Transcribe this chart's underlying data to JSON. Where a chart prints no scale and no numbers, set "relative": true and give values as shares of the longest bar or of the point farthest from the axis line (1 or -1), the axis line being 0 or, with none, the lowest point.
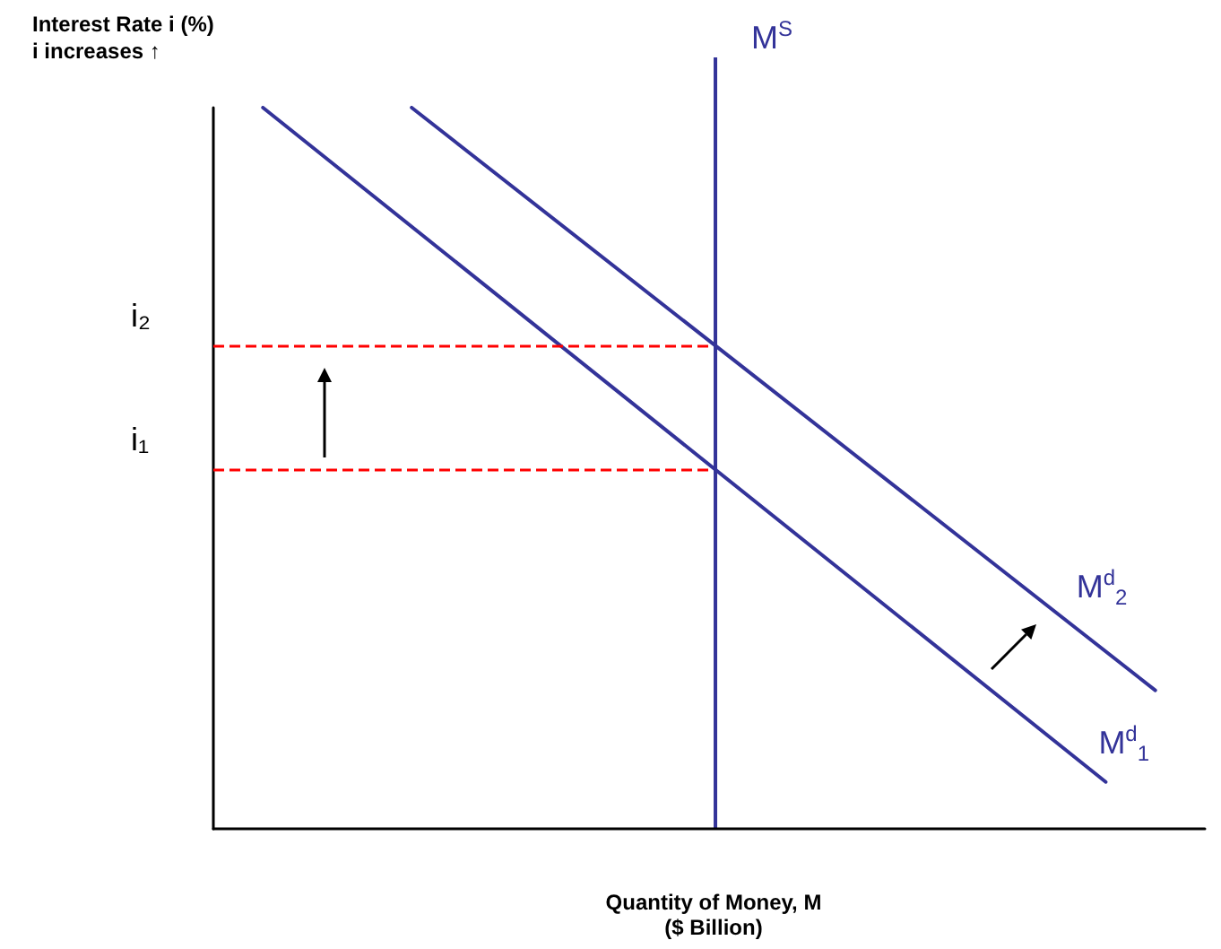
{
  "chart_data": {
    "type": "line",
    "relative": true,
    "xlabel": "Quantity of Money, M\n($ Billion)",
    "ylabel": "Interest Rate i (%)\ni increases ↑",
    "annotations": [
      "M$^{S}$"
    ],
    "legend": false,
    "grid": false,
    "marker": "none",
    "line_style": "solid",
    "categories": [
      null,
      null,
      null,
      null,
      null,
      null,
      null,
      null,
      null,
      null,
      null,
      null,
      null,
      null,
      null,
      null,
      null,
      null,
      null,
      null,
      null
    ],
    "series": [
      {
        "name": "M$^{d}$$_{1}$",
        "color": "#333399",
        "values": [
          null,
          1,
          null,
          null,
          null,
          null,
          null,
          null,
          null,
          null,
          null,
          null,
          null,
          null,
          null,
          null,
          null,
          null,
          0.065,
          null,
          null
        ]
      },
      {
        "name": "M$^{d}$$_{2}$",
        "color": "#333399",
        "values": [
          null,
          null,
          null,
          null,
          1,
          null,
          null,
          null,
          null,
          null,
          null,
          null,
          null,
          null,
          null,
          null,
          null,
          null,
          null,
          0.192,
          null
        ]
      }
    ],
    "ref_lines": [
      {
        "axis": "y",
        "value": 0.669,
        "label": "i₂",
        "color": "#ff0000",
        "line_style": "dashed"
      },
      {
        "axis": "y",
        "value": 0.498,
        "label": "i₁",
        "color": "#ff0000",
        "line_style": "dashed"
      }
    ]
  }
}
